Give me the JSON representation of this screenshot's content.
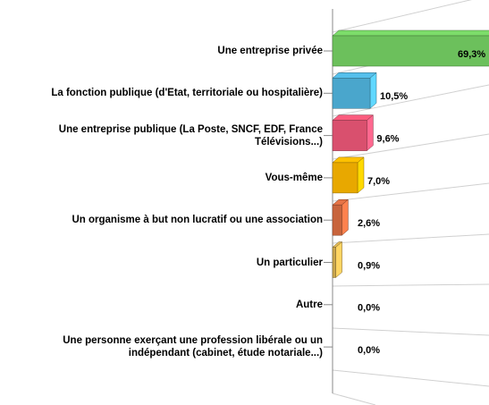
{
  "chart_data": {
    "type": "bar3d-horizontal",
    "categories": [
      "Une entreprise privée",
      "La fonction publique (d'Etat, territoriale ou hospitalière)",
      "Une entreprise publique (La Poste, SNCF, EDF, France\nTélévisions...)",
      "Vous-même",
      "Un organisme à but non lucratif ou une association",
      "Un particulier",
      "Autre",
      "Une personne exerçant une profession libérale ou un\nindépendant (cabinet, étude notariale...)"
    ],
    "values": [
      69.3,
      10.5,
      9.6,
      7.0,
      2.6,
      0.9,
      0.0,
      0.0
    ],
    "value_labels": [
      "69,3%",
      "10,5%",
      "9,6%",
      "7,0%",
      "2,6%",
      "0,9%",
      "0,0%",
      "0,0%"
    ],
    "colors": [
      "#6cc05c",
      "#4aa6cc",
      "#d9506e",
      "#e8a800",
      "#c8643c",
      "#c8a44c",
      "#999999",
      "#999999"
    ]
  }
}
